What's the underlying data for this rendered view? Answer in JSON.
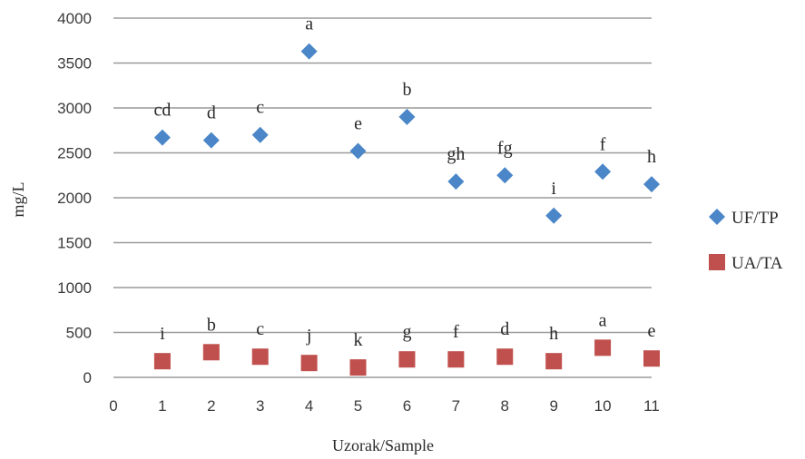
{
  "chart_data": {
    "type": "scatter",
    "xlabel": "Uzorak/Sample",
    "ylabel": "mg/L",
    "xlim": [
      0,
      11
    ],
    "ylim": [
      0,
      4000
    ],
    "x_ticks": [
      "0",
      "1",
      "2",
      "3",
      "4",
      "5",
      "6",
      "7",
      "8",
      "9",
      "10",
      "11"
    ],
    "y_ticks": [
      "0",
      "500",
      "1000",
      "1500",
      "2000",
      "2500",
      "3000",
      "3500",
      "4000"
    ],
    "grid": "horizontal",
    "legend_position": "right",
    "series": [
      {
        "name": "UF/TP",
        "marker": "diamond",
        "color": "#4a86c8",
        "x": [
          1,
          2,
          3,
          4,
          5,
          6,
          7,
          8,
          9,
          10,
          11
        ],
        "y": [
          2670,
          2640,
          2700,
          3630,
          2520,
          2900,
          2180,
          2250,
          1800,
          2290,
          2150
        ],
        "labels": [
          "cd",
          "d",
          "c",
          "a",
          "e",
          "b",
          "gh",
          "fg",
          "i",
          "f",
          "h"
        ]
      },
      {
        "name": "UA/TA",
        "marker": "square",
        "color": "#c0504d",
        "x": [
          1,
          2,
          3,
          4,
          5,
          6,
          7,
          8,
          9,
          10,
          11
        ],
        "y": [
          180,
          280,
          230,
          160,
          110,
          200,
          200,
          230,
          180,
          330,
          210
        ],
        "labels": [
          "i",
          "b",
          "c",
          "j",
          "k",
          "g",
          "f",
          "d",
          "h",
          "a",
          "e"
        ]
      }
    ]
  }
}
